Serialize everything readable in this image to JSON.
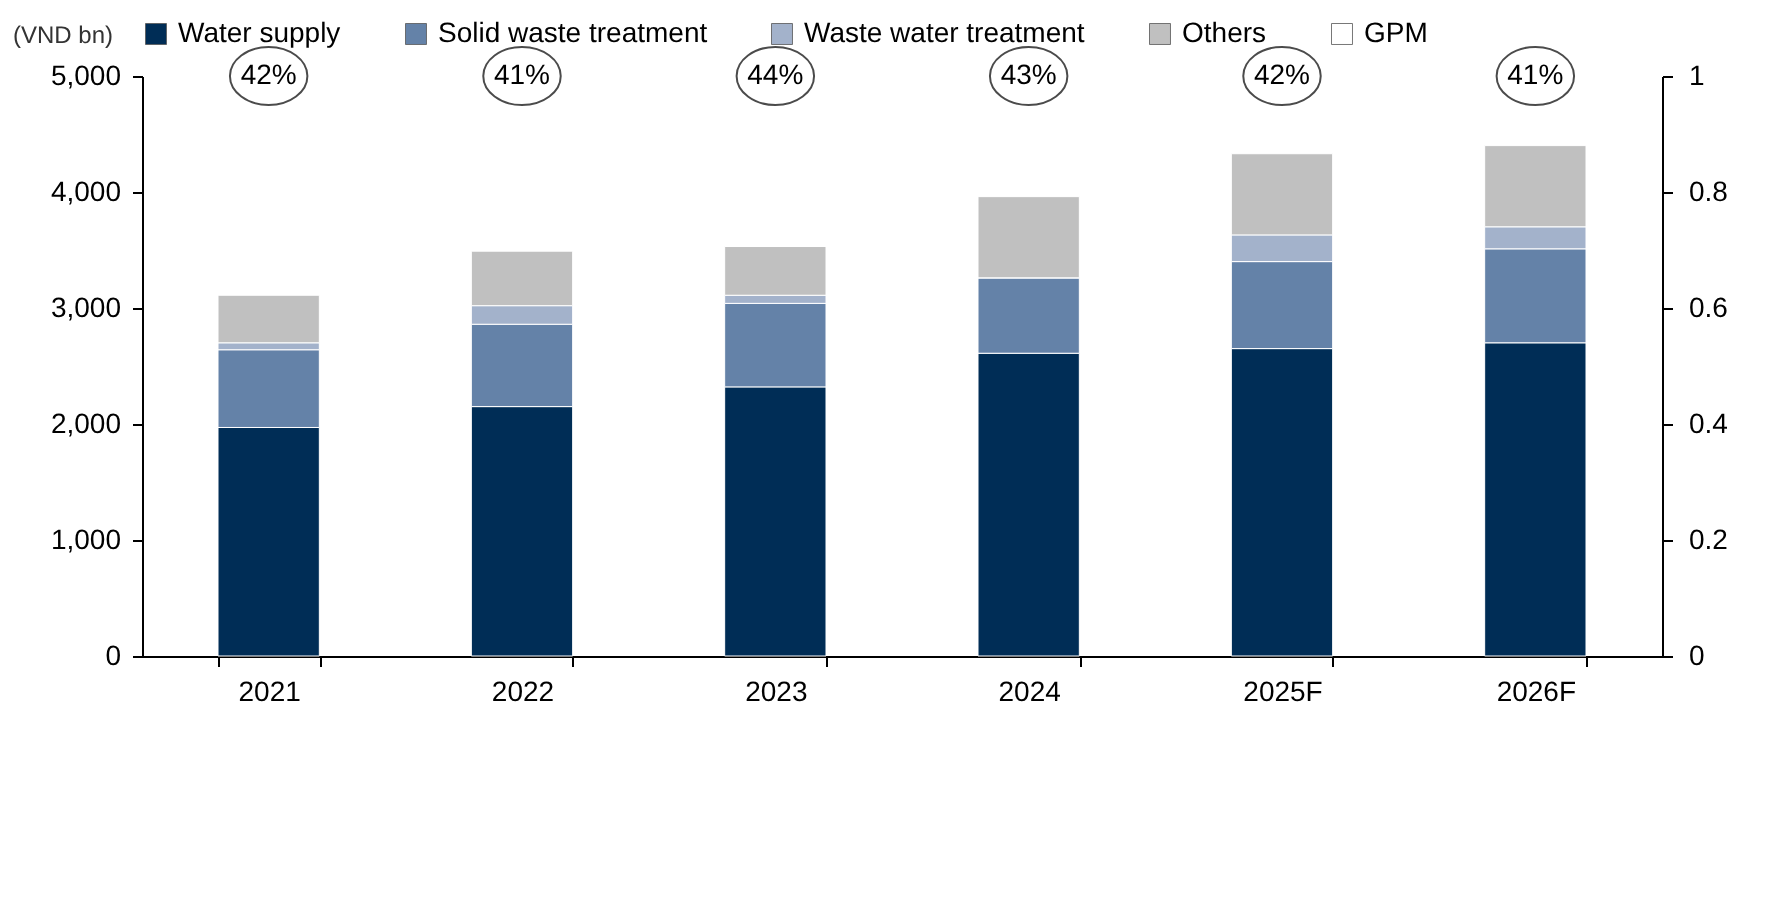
{
  "chart_data": {
    "type": "bar",
    "stacked": true,
    "ylabel": "(VND bn)",
    "categories": [
      "2021",
      "2022",
      "2023",
      "2024",
      "2025F",
      "2026F"
    ],
    "series": [
      {
        "name": "Water supply",
        "color": "#002d56",
        "values": [
          1970,
          2150,
          2320,
          2610,
          2650,
          2700
        ]
      },
      {
        "name": "Solid waste treatment",
        "color": "#6482a8",
        "values": [
          670,
          710,
          720,
          650,
          750,
          810
        ]
      },
      {
        "name": "Waste water treatment",
        "color": "#a3b2cb",
        "values": [
          60,
          160,
          70,
          0,
          230,
          190
        ]
      },
      {
        "name": "Others",
        "color": "#c0c0c0",
        "values": [
          410,
          470,
          420,
          700,
          700,
          700
        ]
      },
      {
        "name": "GPM",
        "type": "scatter",
        "marker": "circle",
        "color": "#ffffff",
        "axis": "y2",
        "values": [
          null,
          null,
          null,
          null,
          null,
          null
        ],
        "value_labels": [
          "42%",
          "41%",
          "44%",
          "43%",
          "42%",
          "41%"
        ]
      }
    ],
    "ylim": [
      0,
      5000
    ],
    "yticks": [
      0,
      {
        "value": 1000,
        "label": "1,000"
      },
      {
        "value": 2000,
        "label": "2,000"
      },
      {
        "value": 3000,
        "label": "3,000"
      },
      {
        "value": 4000,
        "label": "4,000"
      },
      {
        "value": 5000,
        "label": "5,000"
      }
    ],
    "y2lim": [
      0,
      1
    ],
    "y2ticks": [
      0,
      0.2,
      0.4,
      0.6,
      0.8,
      1
    ],
    "legend": "top",
    "grid": false
  }
}
